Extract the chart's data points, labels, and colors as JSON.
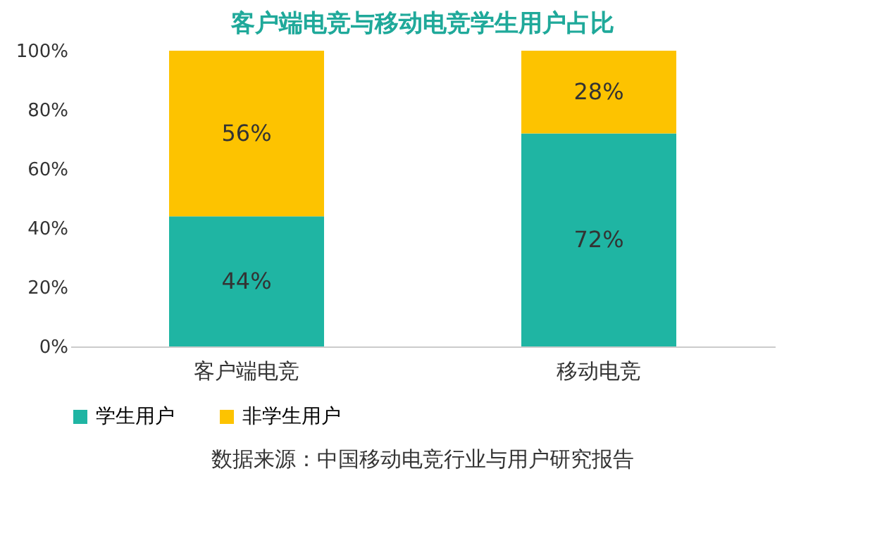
{
  "chart_data": {
    "type": "bar",
    "stacked": true,
    "title": "客户端电竞与移动电竞学生用户占比",
    "categories": [
      "客户端电竞",
      "移动电竞"
    ],
    "series": [
      {
        "name": "学生用户",
        "color": "#1fb5a3",
        "values": [
          44,
          72
        ],
        "value_labels": [
          "44%",
          "72%"
        ]
      },
      {
        "name": "非学生用户",
        "color": "#fdc300",
        "values": [
          56,
          28
        ],
        "value_labels": [
          "56%",
          "28%"
        ]
      }
    ],
    "ylim": [
      0,
      100
    ],
    "yticks": [
      {
        "value": 0,
        "label": "0%"
      },
      {
        "value": 20,
        "label": "20%"
      },
      {
        "value": 40,
        "label": "40%"
      },
      {
        "value": 60,
        "label": "60%"
      },
      {
        "value": 80,
        "label": "80%"
      },
      {
        "value": 100,
        "label": "100%"
      }
    ],
    "grid": false,
    "legend": "bottom",
    "annotations": [
      "数据来源：中国移动电竞行业与用户研究报告"
    ]
  }
}
